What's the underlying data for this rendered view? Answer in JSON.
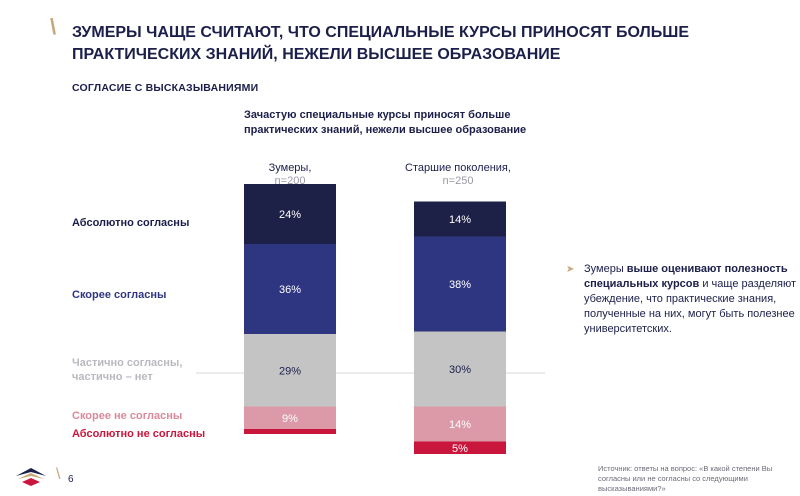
{
  "header": {
    "title": "ЗУМЕРЫ ЧАЩЕ СЧИТАЮТ, ЧТО СПЕЦИАЛЬНЫЕ КУРСЫ ПРИНОСЯТ БОЛЬШЕ ПРАКТИЧЕСКИХ ЗНАНИЙ, НЕЖЕЛИ ВЫСШЕЕ ОБРАЗОВАНИЕ",
    "subtitle": "СОГЛАСИЕ С ВЫСКАЗЫВАНИЯМИ"
  },
  "chart_data": {
    "type": "bar",
    "stacked": true,
    "title": "Зачастую специальные курсы приносят больше практических знаний, нежели высшее образование",
    "categories": [
      "Зумеры,",
      "Старшие поколения,"
    ],
    "category_n": [
      "n=200",
      "n=250"
    ],
    "series": [
      {
        "name": "Абсолютно согласны",
        "values": [
          24,
          14
        ],
        "labels": [
          "24%",
          "14%"
        ],
        "color": "#1e2147",
        "label_color": "#ffffff",
        "legend_color": "#1b1f4a"
      },
      {
        "name": "Скорее согласны",
        "values": [
          36,
          38
        ],
        "labels": [
          "36%",
          "38%"
        ],
        "color": "#2f3681",
        "label_color": "#ffffff",
        "legend_color": "#2f3681"
      },
      {
        "name": "Частично согласны,\nчастично – нет",
        "values": [
          29,
          30
        ],
        "labels": [
          "29%",
          "30%"
        ],
        "color": "#c4c4c4",
        "label_color": "#1b1f4a",
        "legend_color": "#b9b9c0"
      },
      {
        "name": "Скорее не согласны",
        "values": [
          9,
          14
        ],
        "labels": [
          "9%",
          "14%"
        ],
        "color": "#dc9aa8",
        "label_color": "#ffffff",
        "legend_color": "#d98a9a"
      },
      {
        "name": "Абсолютно не согласны",
        "values": [
          2,
          5
        ],
        "labels": [
          "",
          "5%"
        ],
        "color": "#c8163d",
        "label_color": "#ffffff",
        "legend_color": "#c8163d"
      }
    ],
    "legend": "left",
    "grid": false
  },
  "note": {
    "arrow": "➤",
    "text_1": "Зумеры ",
    "bold": "выше оценивают полезность специальных курсов",
    "text_2": " и чаще разделяют убеждение, что практические знания, полученные на них, могут быть полезнее университетских."
  },
  "footer": {
    "page_number": "6",
    "source": "Источник: ответы на вопрос: «В какой степени Вы согласны или не согласны со следующими высказываниями?»"
  },
  "colors": {
    "navy": "#1b1f4a",
    "gold": "#c8a77a"
  }
}
